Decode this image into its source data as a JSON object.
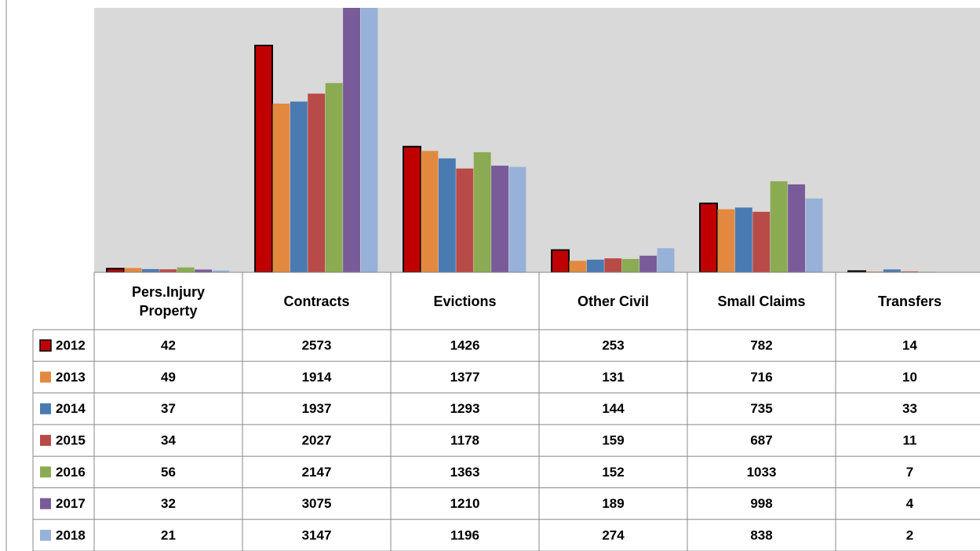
{
  "chart_data": {
    "type": "bar",
    "categories": [
      "Pers.Injury Property",
      "Contracts",
      "Evictions",
      "Other Civil",
      "Small Claims",
      "Transfers"
    ],
    "series": [
      {
        "name": "2012",
        "color": "#c00000",
        "values": [
          42,
          2573,
          1426,
          253,
          782,
          14
        ]
      },
      {
        "name": "2013",
        "color": "#e3893f",
        "values": [
          49,
          1914,
          1377,
          131,
          716,
          10
        ]
      },
      {
        "name": "2014",
        "color": "#4a7ab2",
        "values": [
          37,
          1937,
          1293,
          144,
          735,
          33
        ]
      },
      {
        "name": "2015",
        "color": "#b84a48",
        "values": [
          34,
          2027,
          1178,
          159,
          687,
          11
        ]
      },
      {
        "name": "2016",
        "color": "#8bab52",
        "values": [
          56,
          2147,
          1363,
          152,
          1033,
          7
        ]
      },
      {
        "name": "2017",
        "color": "#7a5b99",
        "values": [
          32,
          3075,
          1210,
          189,
          998,
          4
        ]
      },
      {
        "name": "2018",
        "color": "#97b1d8",
        "values": [
          21,
          3147,
          1196,
          274,
          838,
          2
        ]
      }
    ],
    "ylim": [
      0,
      3000
    ]
  }
}
